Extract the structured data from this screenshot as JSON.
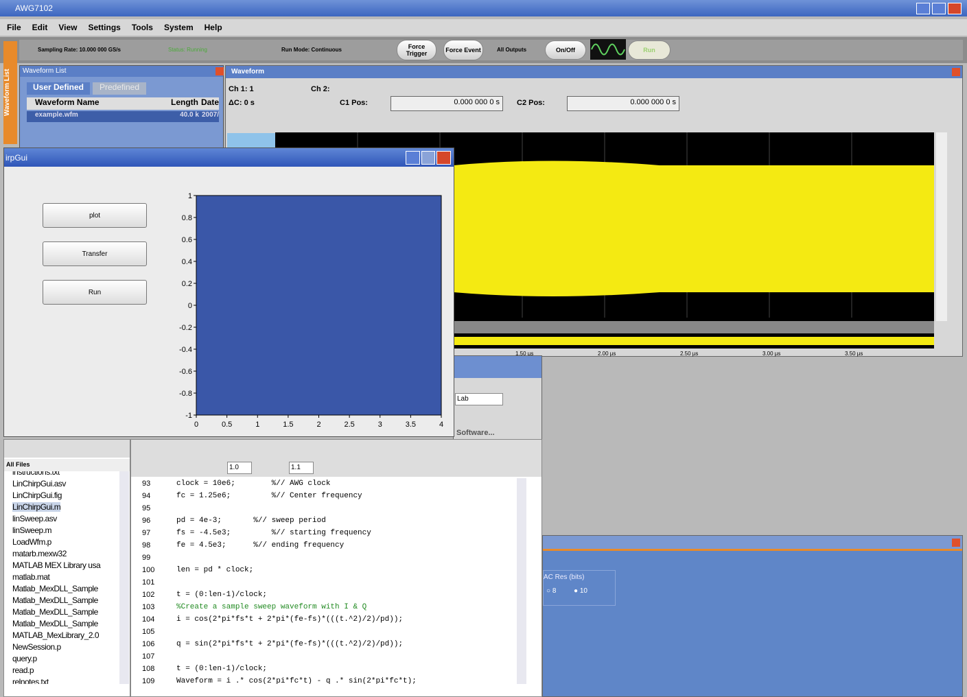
{
  "app": {
    "title": "AWG7102",
    "menu": [
      "File",
      "Edit",
      "View",
      "Settings",
      "Tools",
      "System",
      "Help"
    ],
    "toolbar": {
      "sampling_rate": "Sampling Rate: 10.000 000 GS/s",
      "status": "Status: Running",
      "run_mode": "Run Mode: Continuous",
      "force_trigger": "Force Trigger",
      "force_event": "Force Event",
      "all_outputs": "All Outputs",
      "on_off": "On/Off",
      "run": "Run"
    },
    "side_tab": "Waveform List"
  },
  "waveform_list": {
    "title": "Waveform List",
    "tabs": [
      "User Defined",
      "Predefined"
    ],
    "columns": [
      "Waveform Name",
      "Length",
      "Date"
    ],
    "row": [
      "example.wfm",
      "40.0 k",
      "2007/"
    ]
  },
  "waveform_window": {
    "title": "Waveform",
    "ch1": "Ch 1: 1",
    "delta": "ΔC: 0 s",
    "ch2": "Ch 2:",
    "c1_label": "C1 Pos:",
    "c1_value": "0.000 000 0 s",
    "c2_label": "C2 Pos:",
    "c2_value": "0.000 000 0 s",
    "time_labels": [
      "1.50 µs",
      "2.00 µs",
      "2.50 µs",
      "3.00 µs",
      "3.50 µs"
    ]
  },
  "chirp_gui": {
    "title": "irpGui",
    "buttons": [
      "plot",
      "Transfer",
      "Run"
    ],
    "plot": {
      "xlim": [
        0,
        4
      ],
      "ylim": [
        -1,
        1
      ],
      "xticks": [
        0,
        0.5,
        1,
        1.5,
        2,
        2.5,
        3,
        3.5,
        4
      ],
      "yticks": [
        -1,
        -0.8,
        -0.6,
        -0.4,
        -0.2,
        0,
        0.2,
        0.4,
        0.6,
        0.8,
        1
      ]
    }
  },
  "middle_window": {
    "dropdown": "Lab",
    "pane": "Software..."
  },
  "file_browser": {
    "filter": "All Files",
    "files": [
      "instructions.txt",
      "LinChirpGui.asv",
      "LinChirpGui.fig",
      "LinChirpGui.m",
      "linSweep.asv",
      "linSweep.m",
      "LoadWfm.p",
      "matarb.mexw32",
      "MATLAB MEX Library usa",
      "matlab.mat",
      "Matlab_MexDLL_Sample",
      "Matlab_MexDLL_Sample",
      "Matlab_MexDLL_Sample",
      "Matlab_MexDLL_Sample",
      "MATLAB_MexLibrary_2.0",
      "NewSession.p",
      "query.p",
      "read.p",
      "relnotes.txt"
    ]
  },
  "editor": {
    "zoom1": "1.0",
    "zoom2": "1.1",
    "lines": [
      {
        "number": 93,
        "code": "clock = 10e6;        %// AWG clock"
      },
      {
        "number": 94,
        "code": "fc = 1.25e6;         %// Center frequency"
      },
      {
        "number": 95
      },
      {
        "number": 96,
        "code": "pd = 4e-3;       %// sweep period"
      },
      {
        "number": 97,
        "code": "fs = -4.5e3;         %// starting frequency"
      },
      {
        "number": 98,
        "code": "fe = 4.5e3;      %// ending frequency"
      },
      {
        "number": 99
      },
      {
        "number": 100,
        "code": "len = pd * clock;"
      },
      {
        "number": 101
      },
      {
        "number": 102,
        "code": "t = (0:len-1)/clock;"
      },
      {
        "number": 103,
        "code": "%Create a sample sweep waveform with I & Q"
      },
      {
        "number": 104,
        "code": "i = cos(2*pi*fs*t + 2*pi*(fe-fs)*(((t.^2)/2)/pd));"
      },
      {
        "number": 105
      },
      {
        "number": 106,
        "code": "q = sin(2*pi*fs*t + 2*pi*(fe-fs)*(((t.^2)/2)/pd));"
      },
      {
        "number": 107
      },
      {
        "number": 108,
        "code": "t = (0:len-1)/clock;"
      },
      {
        "number": 109,
        "code": "Waveform = i .* cos(2*pi*fc*t) - q .* sin(2*pi*fc*t);"
      }
    ]
  },
  "dac_panel": {
    "label": "AC Res (bits)",
    "options": [
      "8",
      "10"
    ]
  }
}
